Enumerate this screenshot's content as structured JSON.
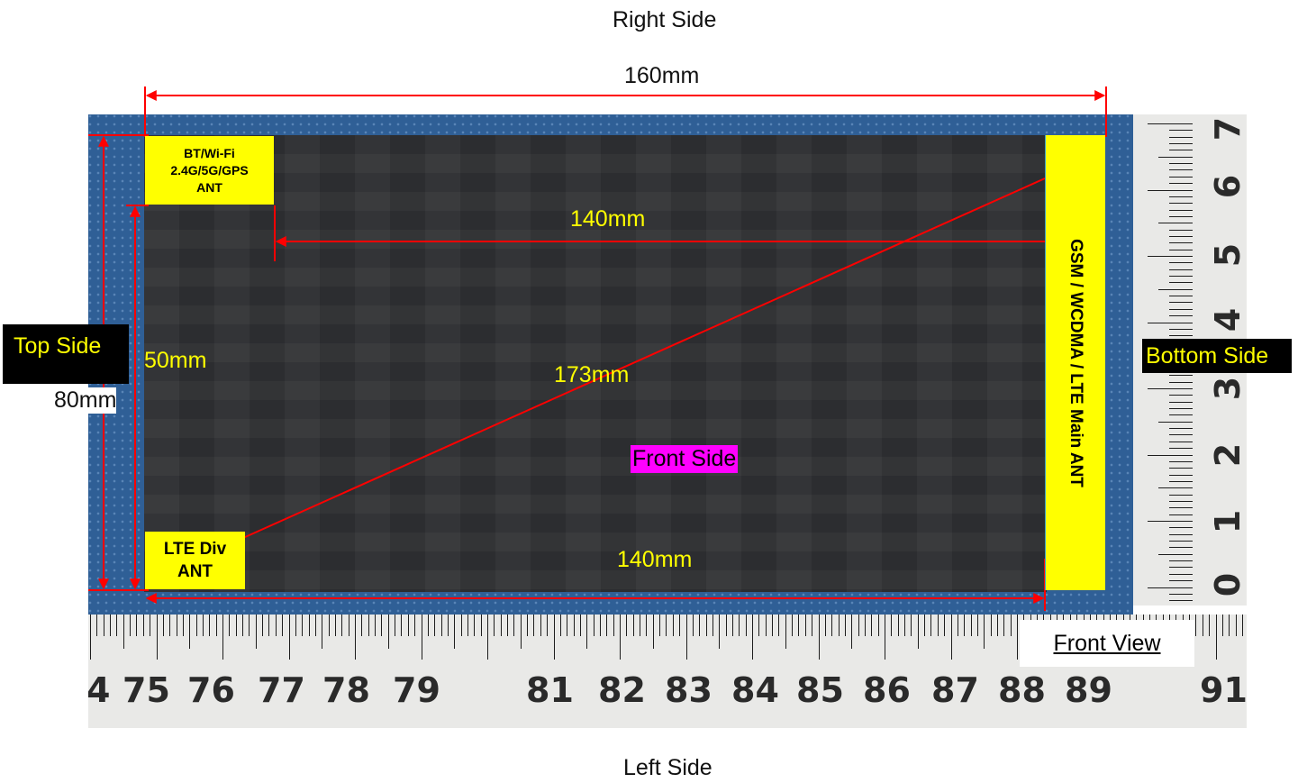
{
  "labels": {
    "right_side": "Right Side",
    "left_side": "Left Side",
    "top_side": "Top Side",
    "bottom_side": "Bottom Side",
    "front_side": "Front Side",
    "front_view": "Front View"
  },
  "dimensions": {
    "width_total": "160mm",
    "height_total": "80mm",
    "inner_height": "50mm",
    "top_distance": "140mm",
    "bottom_distance": "140mm",
    "diagonal": "173mm"
  },
  "antennas": {
    "bt_wifi": {
      "line1": "BT/Wi-Fi",
      "line2": "2.4G/5G/GPS",
      "line3": "ANT"
    },
    "lte_div": {
      "line1": "LTE Div",
      "line2": "ANT"
    },
    "main": "GSM / WCDMA / LTE Main ANT"
  },
  "ruler": {
    "bottom_numbers": [
      "4",
      "75",
      "76",
      "77",
      "78",
      "79",
      "81",
      "82",
      "83",
      "84",
      "85",
      "86",
      "87",
      "88",
      "89",
      "91"
    ],
    "right_numbers": [
      "7",
      "6",
      "5",
      "4",
      "3",
      "2",
      "1",
      "0"
    ]
  },
  "colors": {
    "dimension_line": "#ff0000",
    "antenna_box": "#ffff00",
    "dimension_text": "#ffff00",
    "front_side_bg": "#ff00ff"
  }
}
